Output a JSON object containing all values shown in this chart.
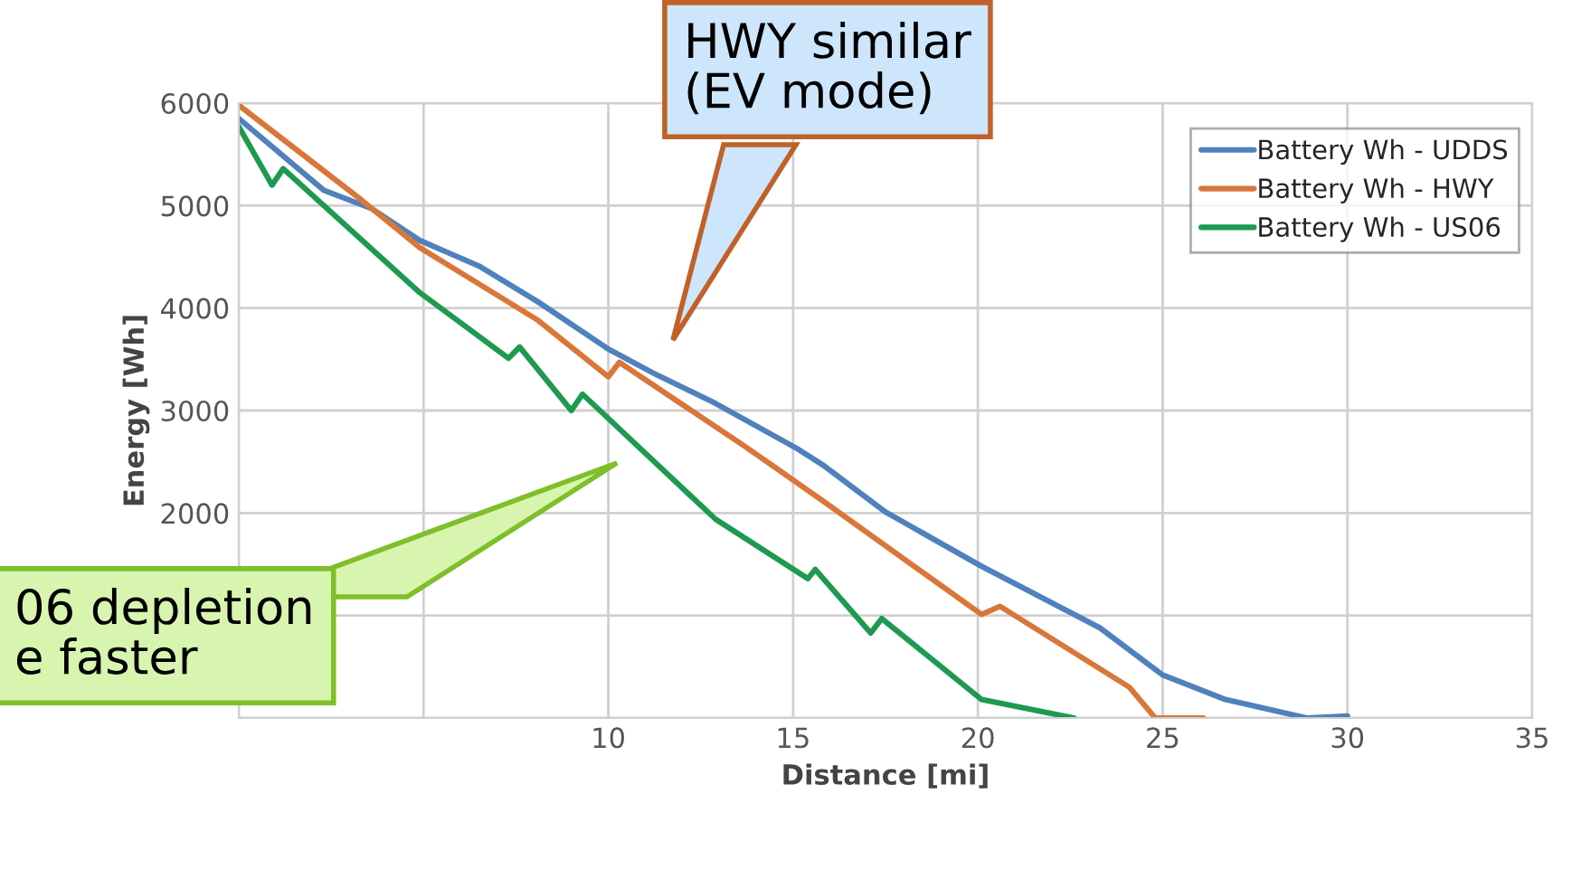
{
  "chart_data": {
    "type": "line",
    "xlabel": "Distance [mi]",
    "ylabel": "Energy [Wh]",
    "xlim": [
      0,
      35
    ],
    "xticks": [
      {
        "value": 0,
        "label": null
      },
      {
        "value": 5,
        "label": null
      },
      10,
      15,
      20,
      25,
      30,
      35
    ],
    "ylim": [
      0,
      6000
    ],
    "yticks": [
      {
        "value": 0,
        "label": null
      },
      {
        "value": 1000,
        "label": null
      },
      2000,
      3000,
      4000,
      5000,
      6000
    ],
    "grid": true,
    "legend": "top right",
    "marker": "none",
    "line_style": "solid",
    "series": [
      {
        "name": "Battery Wh - UDDS",
        "color": "#4f81bd",
        "x": [
          0,
          2.3,
          3.6,
          4.9,
          6.5,
          8.1,
          10,
          11.3,
          12.9,
          15.1,
          15.8,
          17.5,
          20.1,
          23.3,
          25.0,
          26.7,
          28.9,
          30
        ],
        "values": [
          5850,
          5150,
          4970,
          4660,
          4410,
          4060,
          3600,
          3350,
          3070,
          2630,
          2470,
          2010,
          1480,
          880,
          420,
          180,
          0,
          20
        ]
      },
      {
        "name": "Battery Wh - HWY",
        "color": "#d9773a",
        "x": [
          0,
          3.3,
          4.9,
          8.1,
          10,
          10.3,
          13.7,
          15.8,
          20.1,
          20.6,
          24.1,
          24.8,
          26.1
        ],
        "values": [
          5980,
          5060,
          4590,
          3880,
          3330,
          3470,
          2650,
          2120,
          1010,
          1090,
          300,
          0,
          0
        ]
      },
      {
        "name": "Battery Wh - US06",
        "color": "#1e9a50",
        "x": [
          0,
          0.9,
          1.2,
          4.9,
          7.3,
          7.6,
          9.0,
          9.3,
          12.9,
          15.4,
          15.6,
          17.1,
          17.4,
          20.1,
          22.6
        ],
        "values": [
          5770,
          5200,
          5360,
          4150,
          3510,
          3620,
          3000,
          3160,
          1940,
          1360,
          1450,
          830,
          970,
          180,
          0
        ]
      }
    ],
    "annotations": [
      "HWY similar\n(EV mode)",
      "06 depletion\ne faster"
    ]
  }
}
